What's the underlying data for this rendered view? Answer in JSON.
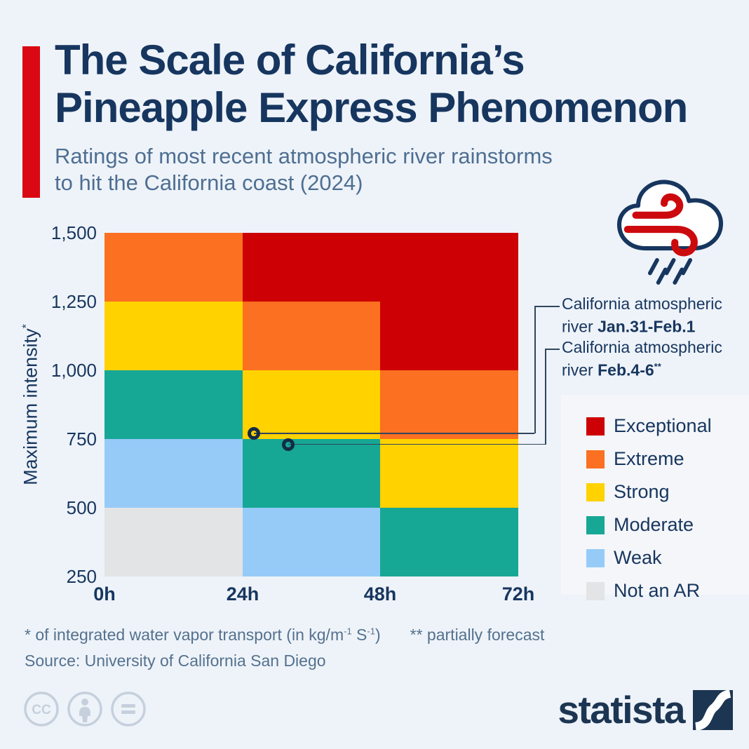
{
  "page": {
    "background": "#eef3f9",
    "accent_color": "#d90812",
    "navy_text_color": "#17365f",
    "muted_text_color": "#4e6f92"
  },
  "header": {
    "title_line1": "The Scale of California’s",
    "title_line2": "Pineapple Express Phenomenon",
    "subtitle_line1": "Ratings of most recent atmospheric river rainstorms",
    "subtitle_line2": "to hit the California coast (2024)"
  },
  "icons": {
    "weather": "cloud-wind-rain-icon",
    "wind_color": "#cc0a0e",
    "cloud_outline_color": "#17365f",
    "footer_badges": [
      "creative-commons-icon",
      "attribution-person-icon",
      "no-derivatives-equals-icon"
    ],
    "logo_mark": "statista-square-icon"
  },
  "chart_data": {
    "type": "heatmap",
    "x_ticks": [
      "0h",
      "24h",
      "48h",
      "72h"
    ],
    "x_range_hours": [
      0,
      72
    ],
    "y_ticks": [
      "1,500",
      "1,250",
      "1,000",
      "750",
      "500",
      "250"
    ],
    "y_range": [
      250,
      1500
    ],
    "ylabel": "Maximum intensity",
    "ylabel_sup": "*",
    "column_bands_hours": [
      "0-24h",
      "24-48h",
      "48-72h"
    ],
    "row_bands_intensity_top_to_bottom": [
      "1250-1500",
      "1000-1250",
      "750-1000",
      "500-750",
      "250-500"
    ],
    "grid_rows_top_to_bottom": [
      [
        "extreme",
        "exceptional",
        "exceptional"
      ],
      [
        "strong",
        "extreme",
        "exceptional"
      ],
      [
        "moderate",
        "strong",
        "extreme"
      ],
      [
        "weak",
        "moderate",
        "strong"
      ],
      [
        "not_an_ar",
        "weak",
        "moderate"
      ]
    ],
    "colors": {
      "exceptional": "#cc0005",
      "extreme": "#fb7021",
      "strong": "#ffd200",
      "moderate": "#17a795",
      "weak": "#96cbf8",
      "not_an_ar": "#e3e4e5"
    },
    "points": [
      {
        "duration_h": 26,
        "intensity": 770,
        "category": "Strong",
        "label_line1": "California atmospheric",
        "label_line2_prefix": "river ",
        "label_date": "Jan.31-Feb.1",
        "label_sup": ""
      },
      {
        "duration_h": 32,
        "intensity": 730,
        "category": "Moderate",
        "label_line1": "California atmospheric",
        "label_line2_prefix": "river ",
        "label_date": "Feb.4-6",
        "label_sup": "**"
      }
    ],
    "legend_position": "right",
    "grid_lines": false
  },
  "legend": {
    "items": [
      {
        "label": "Exceptional",
        "color": "#cc0005"
      },
      {
        "label": "Extreme",
        "color": "#fb7021"
      },
      {
        "label": "Strong",
        "color": "#ffd200"
      },
      {
        "label": "Moderate",
        "color": "#17a795"
      },
      {
        "label": "Weak",
        "color": "#96cbf8"
      },
      {
        "label": "Not an AR",
        "color": "#e3e4e5"
      }
    ]
  },
  "footnotes": {
    "fn1_part1": "* of integrated water vapor transport (in kg/m",
    "fn1_sup1": "-1",
    "fn1_part2": " S",
    "fn1_sup2": "-1",
    "fn1_part3": ")",
    "fn2": "** partially forecast",
    "source": "Source: University of California San Diego"
  },
  "footer": {
    "cc_badge_text": "CC",
    "logo_text": "statista"
  }
}
